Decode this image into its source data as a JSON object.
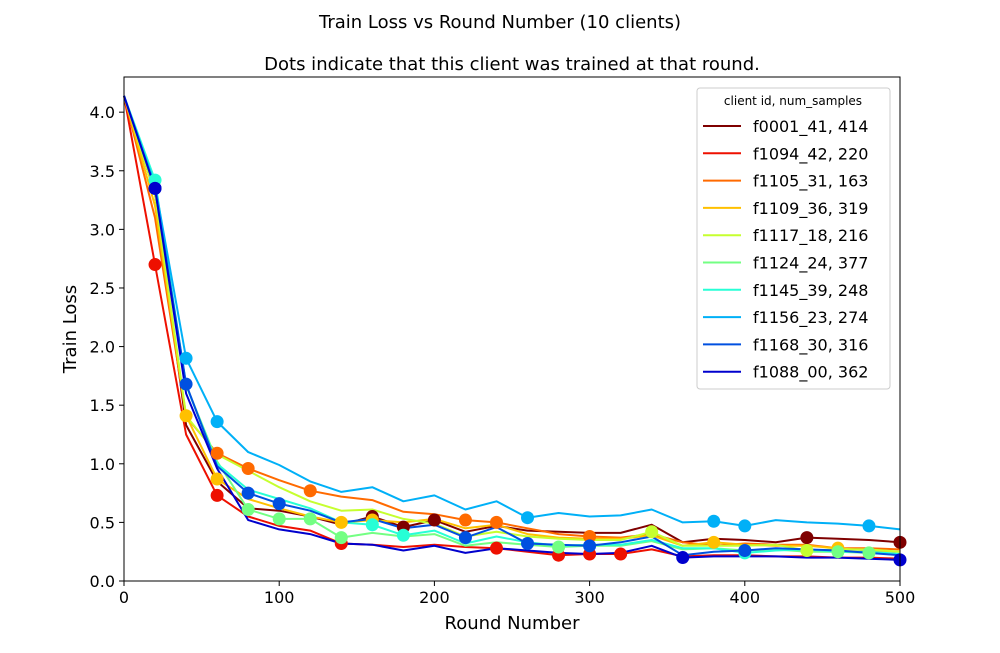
{
  "chart_data": {
    "type": "line",
    "title": "Train Loss vs Round Number (10 clients)",
    "subtitle": "Dots indicate that this client was trained at that round.",
    "xlabel": "Round Number",
    "ylabel": "Train Loss",
    "xlim": [
      0,
      500
    ],
    "ylim": [
      0.0,
      4.3
    ],
    "xticks": [
      "0",
      "100",
      "200",
      "300",
      "400",
      "500"
    ],
    "yticks": [
      "0.0",
      "0.5",
      "1.0",
      "1.5",
      "2.0",
      "2.5",
      "3.0",
      "3.5",
      "4.0"
    ],
    "grid": false,
    "legend_title": "client id, num_samples",
    "legend_position": "top-right",
    "x": [
      0,
      20,
      40,
      60,
      80,
      100,
      120,
      140,
      160,
      180,
      200,
      220,
      240,
      260,
      280,
      300,
      320,
      340,
      360,
      380,
      400,
      420,
      440,
      460,
      480,
      500
    ],
    "series": [
      {
        "name": "f0001_41, 414",
        "color": "#7f0000",
        "values": [
          4.14,
          3.3,
          1.33,
          0.85,
          0.62,
          0.6,
          0.55,
          0.48,
          0.55,
          0.46,
          0.52,
          0.42,
          0.47,
          0.43,
          0.42,
          0.41,
          0.41,
          0.48,
          0.33,
          0.36,
          0.35,
          0.33,
          0.37,
          0.36,
          0.35,
          0.33
        ],
        "dots": [
          160,
          180,
          200,
          440,
          500
        ]
      },
      {
        "name": "f1094_42, 220",
        "color": "#ee1000",
        "values": [
          4.14,
          2.7,
          1.25,
          0.73,
          0.55,
          0.47,
          0.43,
          0.32,
          0.31,
          0.29,
          0.31,
          0.29,
          0.28,
          0.25,
          0.22,
          0.23,
          0.23,
          0.27,
          0.21,
          0.22,
          0.22,
          0.21,
          0.21,
          0.2,
          0.2,
          0.19
        ],
        "dots": [
          20,
          60,
          140,
          240,
          280,
          300,
          320
        ]
      },
      {
        "name": "f1105_31, 163",
        "color": "#ff6a00",
        "values": [
          4.14,
          3.1,
          1.4,
          1.09,
          0.96,
          0.86,
          0.77,
          0.72,
          0.69,
          0.59,
          0.57,
          0.52,
          0.5,
          0.45,
          0.4,
          0.38,
          0.37,
          0.4,
          0.33,
          0.3,
          0.32,
          0.31,
          0.31,
          0.28,
          0.28,
          0.27
        ],
        "dots": [
          60,
          80,
          120,
          220,
          240,
          300
        ]
      },
      {
        "name": "f1109_36, 319",
        "color": "#ffc000",
        "values": [
          4.14,
          3.2,
          1.41,
          0.87,
          0.7,
          0.62,
          0.55,
          0.5,
          0.52,
          0.5,
          0.53,
          0.45,
          0.48,
          0.4,
          0.37,
          0.36,
          0.36,
          0.39,
          0.3,
          0.33,
          0.31,
          0.3,
          0.3,
          0.28,
          0.26,
          0.25
        ],
        "dots": [
          40,
          60,
          140,
          160,
          380,
          460
        ]
      },
      {
        "name": "f1117_18, 216",
        "color": "#c6ff2f",
        "values": [
          4.14,
          3.3,
          1.41,
          1.08,
          0.94,
          0.8,
          0.68,
          0.6,
          0.61,
          0.53,
          0.49,
          0.38,
          0.42,
          0.38,
          0.36,
          0.35,
          0.35,
          0.42,
          0.3,
          0.3,
          0.3,
          0.31,
          0.26,
          0.27,
          0.27,
          0.25
        ],
        "dots": [
          340,
          440
        ]
      },
      {
        "name": "f1124_24, 377",
        "color": "#73ff83",
        "values": [
          4.14,
          3.38,
          1.67,
          1.02,
          0.61,
          0.53,
          0.53,
          0.37,
          0.41,
          0.38,
          0.4,
          0.3,
          0.33,
          0.31,
          0.29,
          0.3,
          0.3,
          0.34,
          0.27,
          0.28,
          0.26,
          0.27,
          0.25,
          0.25,
          0.24,
          0.23
        ],
        "dots": [
          80,
          100,
          120,
          140,
          280,
          460,
          480
        ]
      },
      {
        "name": "f1145_39, 248",
        "color": "#27ffd6",
        "values": [
          4.14,
          3.42,
          1.67,
          1.0,
          0.78,
          0.7,
          0.62,
          0.5,
          0.48,
          0.39,
          0.43,
          0.32,
          0.38,
          0.33,
          0.3,
          0.31,
          0.31,
          0.35,
          0.28,
          0.28,
          0.24,
          0.26,
          0.27,
          0.25,
          0.25,
          0.23
        ],
        "dots": [
          20,
          160,
          180,
          400
        ]
      },
      {
        "name": "f1156_23, 274",
        "color": "#00b0f7",
        "values": [
          4.14,
          3.38,
          1.9,
          1.36,
          1.1,
          0.99,
          0.85,
          0.76,
          0.8,
          0.68,
          0.73,
          0.61,
          0.68,
          0.54,
          0.58,
          0.55,
          0.56,
          0.61,
          0.5,
          0.51,
          0.47,
          0.52,
          0.5,
          0.49,
          0.47,
          0.44
        ],
        "dots": [
          40,
          60,
          260,
          380,
          400,
          480
        ]
      },
      {
        "name": "f1168_30, 316",
        "color": "#0050e0",
        "values": [
          4.14,
          3.35,
          1.68,
          0.98,
          0.75,
          0.66,
          0.6,
          0.5,
          0.53,
          0.45,
          0.48,
          0.37,
          0.46,
          0.32,
          0.31,
          0.3,
          0.33,
          0.38,
          0.22,
          0.25,
          0.26,
          0.28,
          0.27,
          0.26,
          0.24,
          0.22
        ],
        "dots": [
          20,
          40,
          80,
          100,
          220,
          260,
          300,
          400
        ]
      },
      {
        "name": "f1088_00, 362",
        "color": "#0000cd",
        "values": [
          4.14,
          3.35,
          1.6,
          0.96,
          0.52,
          0.44,
          0.4,
          0.32,
          0.31,
          0.26,
          0.3,
          0.24,
          0.28,
          0.26,
          0.24,
          0.23,
          0.24,
          0.3,
          0.2,
          0.21,
          0.21,
          0.21,
          0.2,
          0.2,
          0.19,
          0.18
        ],
        "dots": [
          20,
          360,
          500
        ]
      }
    ]
  }
}
